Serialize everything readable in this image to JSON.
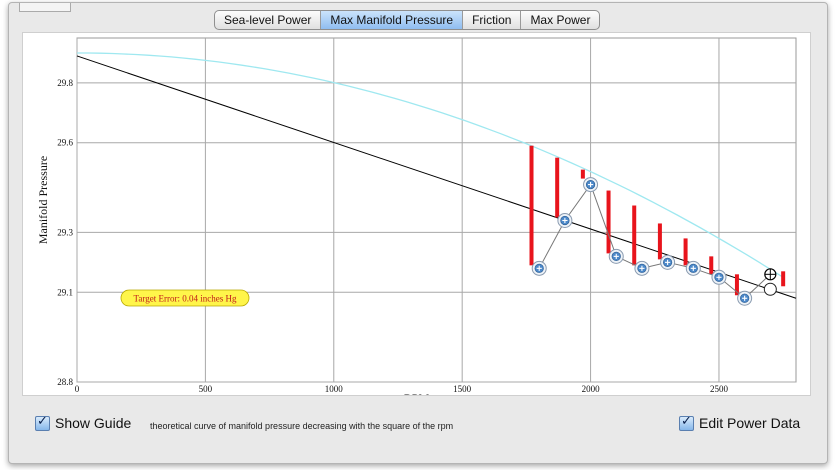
{
  "tabs": [
    {
      "label": "Sea-level Power",
      "active": false
    },
    {
      "label": "Max Manifold Pressure",
      "active": true
    },
    {
      "label": "Friction",
      "active": false
    },
    {
      "label": "Max Power",
      "active": false
    }
  ],
  "target_error": "Target Error: 0.04 inches Hg",
  "show_guide": {
    "label": "Show Guide",
    "checked": true
  },
  "guide_description": "theoretical curve of manifold pressure decreasing with the square of the rpm",
  "edit_power": {
    "label": "Edit Power Data",
    "checked": true
  },
  "colors": {
    "guide_curve": "#9fe8f0",
    "fit_line": "#000000",
    "error_bar": "#e8141c",
    "active_tab": "#8fbdf0"
  },
  "chart_data": {
    "type": "scatter",
    "xlabel": "RPM",
    "ylabel": "Manifold Pressure",
    "xlim": [
      0,
      2800
    ],
    "ylim": [
      28.8,
      29.95
    ],
    "xticks": [
      "0",
      "500",
      "1000",
      "1500",
      "2000",
      "2500"
    ],
    "yticks": [
      "28.8",
      "29.1",
      "29.3",
      "29.6",
      "29.8"
    ],
    "grid": true,
    "guide_curve": {
      "y0": 29.9,
      "x_end": 2750,
      "y_end": 29.15
    },
    "fit_line": {
      "x": [
        0,
        2800
      ],
      "y": [
        29.89,
        29.08
      ]
    },
    "points": [
      {
        "x": 1800,
        "y": 29.18
      },
      {
        "x": 1900,
        "y": 29.34
      },
      {
        "x": 2000,
        "y": 29.46
      },
      {
        "x": 2100,
        "y": 29.22
      },
      {
        "x": 2200,
        "y": 29.18
      },
      {
        "x": 2300,
        "y": 29.2
      },
      {
        "x": 2400,
        "y": 29.18
      },
      {
        "x": 2500,
        "y": 29.15
      },
      {
        "x": 2600,
        "y": 29.08
      }
    ],
    "error_bars": [
      {
        "x": 1770,
        "y1": 29.19,
        "y2": 29.59
      },
      {
        "x": 1870,
        "y1": 29.35,
        "y2": 29.55
      },
      {
        "x": 1970,
        "y1": 29.48,
        "y2": 29.51
      },
      {
        "x": 2070,
        "y1": 29.23,
        "y2": 29.44
      },
      {
        "x": 2170,
        "y1": 29.19,
        "y2": 29.39
      },
      {
        "x": 2270,
        "y1": 29.21,
        "y2": 29.33
      },
      {
        "x": 2370,
        "y1": 29.19,
        "y2": 29.28
      },
      {
        "x": 2470,
        "y1": 29.16,
        "y2": 29.22
      },
      {
        "x": 2570,
        "y1": 29.09,
        "y2": 29.16
      },
      {
        "x": 2750,
        "y1": 29.12,
        "y2": 29.17
      }
    ],
    "handles": [
      {
        "x": 2700,
        "y": 29.16,
        "kind": "crosshair"
      },
      {
        "x": 2700,
        "y": 29.11,
        "kind": "ring"
      }
    ]
  }
}
